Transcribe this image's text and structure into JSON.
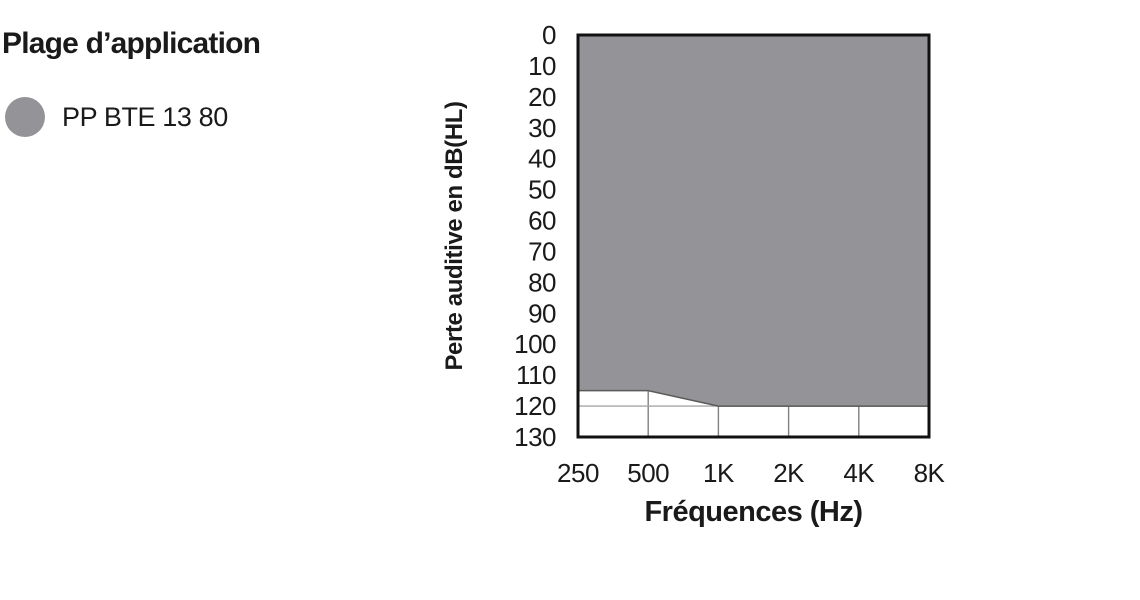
{
  "header": {
    "title": "Plage d’application"
  },
  "legend": {
    "swatch_color": "#949498",
    "label": "PP BTE 13 80"
  },
  "chart_data": {
    "type": "area",
    "title": "Plage d’application",
    "xlabel": "Fréquences (Hz)",
    "ylabel": "Perte auditive en dB(HL)",
    "x_categories": [
      "250",
      "500",
      "1K",
      "2K",
      "4K",
      "8K"
    ],
    "x_frequencies_hz": [
      250,
      500,
      1000,
      2000,
      4000,
      8000
    ],
    "y_ticks": [
      0,
      10,
      20,
      30,
      40,
      50,
      60,
      70,
      80,
      90,
      100,
      110,
      120,
      130
    ],
    "ylim": [
      0,
      130
    ],
    "y_axis_inverted": true,
    "series": [
      {
        "name": "PP BTE 13 80",
        "fill_color": "#949498",
        "upper_db_hl": [
          0,
          0,
          0,
          0,
          0,
          0
        ],
        "lower_db_hl": [
          115,
          115,
          120,
          120,
          120,
          120
        ]
      }
    ],
    "gridlines": {
      "vertical_at": [
        "500",
        "1K",
        "2K",
        "4K"
      ],
      "horizontal_at": [
        120
      ],
      "vertical_color": "#808080",
      "horizontal_color": "#a6a6a6"
    },
    "border_color": "#111111",
    "area_edge_color": "#5a5a5a",
    "legend_position": "top-left"
  }
}
